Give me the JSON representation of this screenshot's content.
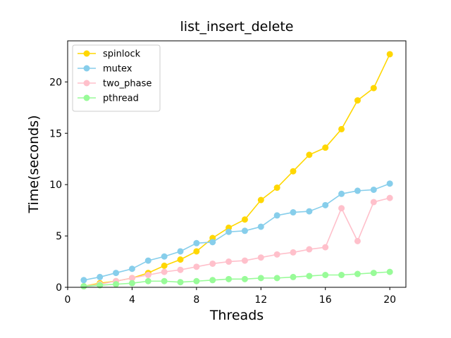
{
  "chart_data": {
    "type": "line",
    "title": "list_insert_delete",
    "xlabel": "Threads",
    "ylabel": "Time(seconds)",
    "xlim": [
      0,
      21
    ],
    "ylim": [
      0,
      24
    ],
    "xticks": [
      0,
      4,
      8,
      12,
      16,
      20
    ],
    "yticks": [
      0,
      5,
      10,
      15,
      20
    ],
    "grid": false,
    "legend_position": "top-left",
    "x": [
      1,
      2,
      3,
      4,
      5,
      6,
      7,
      8,
      9,
      10,
      11,
      12,
      13,
      14,
      15,
      16,
      17,
      18,
      19,
      20
    ],
    "series": [
      {
        "name": "spinlock",
        "color": "#ffd700",
        "values": [
          0.1,
          0.4,
          0.6,
          0.9,
          1.4,
          2.1,
          2.7,
          3.5,
          4.8,
          5.8,
          6.6,
          8.5,
          9.7,
          11.3,
          12.9,
          13.6,
          15.4,
          18.2,
          19.4,
          22.7
        ]
      },
      {
        "name": "mutex",
        "color": "#87ceeb",
        "values": [
          0.7,
          1.0,
          1.4,
          1.8,
          2.6,
          3.0,
          3.5,
          4.3,
          4.4,
          5.4,
          5.5,
          5.9,
          7.0,
          7.3,
          7.4,
          8.0,
          9.1,
          9.4,
          9.5,
          10.1
        ]
      },
      {
        "name": "two_phase",
        "color": "#ffc0cb",
        "values": [
          0.1,
          0.3,
          0.6,
          0.9,
          1.2,
          1.5,
          1.7,
          2.0,
          2.3,
          2.5,
          2.6,
          2.9,
          3.2,
          3.4,
          3.7,
          3.9,
          7.7,
          4.5,
          8.3,
          8.7
        ]
      },
      {
        "name": "pthread",
        "color": "#98fb98",
        "values": [
          0.1,
          0.2,
          0.3,
          0.4,
          0.6,
          0.6,
          0.5,
          0.6,
          0.7,
          0.8,
          0.8,
          0.9,
          0.9,
          1.0,
          1.1,
          1.2,
          1.2,
          1.3,
          1.4,
          1.5
        ]
      }
    ]
  }
}
